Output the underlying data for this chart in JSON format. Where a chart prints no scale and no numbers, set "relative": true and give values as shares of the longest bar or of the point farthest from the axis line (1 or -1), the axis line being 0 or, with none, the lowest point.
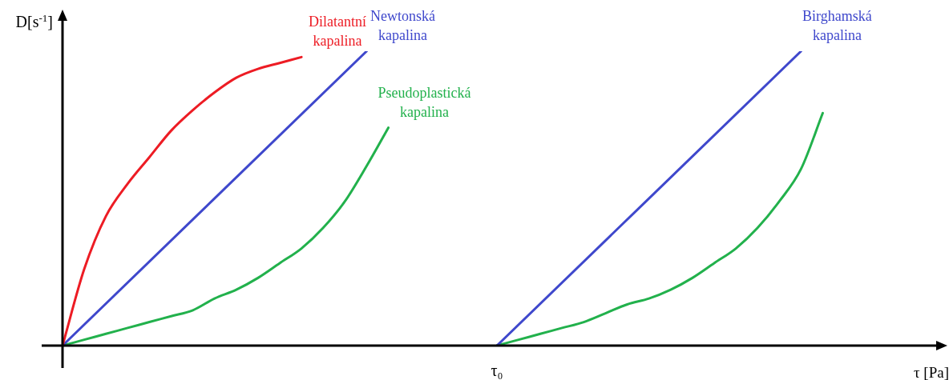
{
  "chart_data": {
    "type": "line",
    "relative": true,
    "xlabel": "τ [Pa]",
    "ylabel": "D[s$^{-1}$]",
    "legend": false,
    "marker": "none",
    "line_style": "solid",
    "annotations": [
      "τ₀"
    ],
    "categories": [
      null,
      null,
      null,
      null,
      null,
      null,
      null,
      null,
      null,
      null,
      null,
      null,
      null,
      null,
      null,
      null,
      null,
      null,
      null,
      null,
      null,
      null,
      null,
      null,
      null,
      null,
      null,
      null,
      null,
      null,
      null,
      null,
      null,
      null,
      null,
      null,
      null,
      null,
      null,
      null,
      null
    ],
    "series": [
      {
        "name": "Dilatantní kapalina",
        "color": "#ed1c24",
        "values": [
          0,
          0.26,
          0.44,
          0.55,
          0.64,
          0.73,
          0.8,
          0.86,
          0.91,
          0.94,
          0.96,
          0.98,
          null,
          null,
          null,
          null,
          null,
          null,
          null,
          null,
          null,
          null,
          null,
          null,
          null,
          null,
          null,
          null,
          null,
          null,
          null,
          null,
          null,
          null,
          null,
          null,
          null,
          null,
          null,
          null,
          null
        ]
      },
      {
        "name": "Newtonská kapalina",
        "color": "#3f48cc",
        "values": [
          0,
          null,
          null,
          null,
          null,
          null,
          null,
          null,
          null,
          null,
          null,
          null,
          null,
          null,
          1,
          null,
          null,
          null,
          null,
          null,
          null,
          null,
          null,
          null,
          null,
          null,
          null,
          null,
          null,
          null,
          null,
          null,
          null,
          null,
          null,
          null,
          null,
          null,
          null,
          null,
          null
        ]
      },
      {
        "name": "Pseudoplastická kapalina",
        "color": "#22b14c",
        "values": [
          0,
          0.02,
          0.04,
          0.06,
          0.08,
          0.1,
          0.12,
          0.16,
          0.19,
          0.23,
          0.28,
          0.33,
          0.4,
          0.49,
          0.61,
          0.74,
          null,
          null,
          null,
          null,
          null,
          null,
          null,
          null,
          null,
          null,
          null,
          null,
          null,
          null,
          null,
          null,
          null,
          null,
          null,
          null,
          null,
          null,
          null,
          null,
          null
        ]
      },
      {
        "name": "Birghamská kapalina",
        "color": "#3f48cc",
        "values": [
          null,
          null,
          null,
          null,
          null,
          null,
          null,
          null,
          null,
          null,
          null,
          null,
          null,
          null,
          null,
          null,
          null,
          null,
          null,
          null,
          0,
          null,
          null,
          null,
          null,
          null,
          null,
          null,
          null,
          null,
          null,
          null,
          null,
          null,
          1,
          null,
          null,
          null,
          null,
          null,
          null
        ]
      },
      {
        "color": "#22b14c",
        "values": [
          null,
          null,
          null,
          null,
          null,
          null,
          null,
          null,
          null,
          null,
          null,
          null,
          null,
          null,
          null,
          null,
          null,
          null,
          null,
          null,
          0,
          0.02,
          0.04,
          0.06,
          0.08,
          0.11,
          0.14,
          0.16,
          0.19,
          0.23,
          0.28,
          0.33,
          0.4,
          0.49,
          0.6,
          0.79,
          null,
          null,
          null,
          null,
          null
        ]
      }
    ]
  }
}
